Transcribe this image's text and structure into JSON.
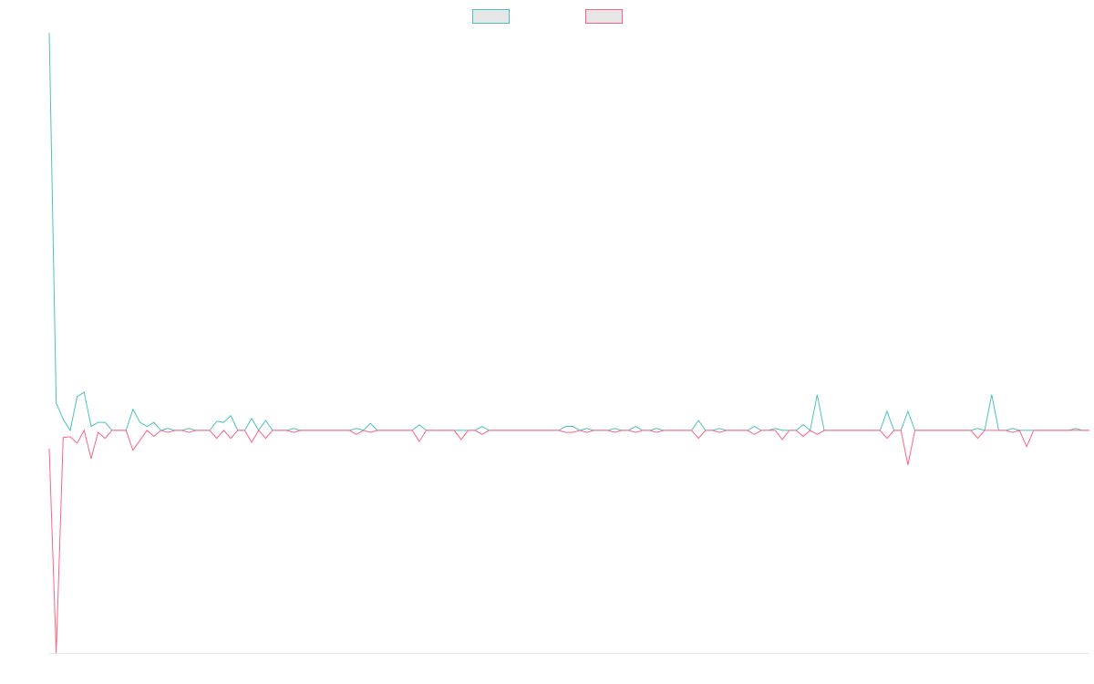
{
  "chart_data": {
    "type": "line",
    "legend": "top",
    "ylim": [
      -56,
      100
    ],
    "series": [
      {
        "color": "#4bc0c0",
        "values": [
          100,
          6.9,
          2.8,
          0,
          8.5,
          9.6,
          1,
          2,
          2,
          0,
          0,
          0,
          5.3,
          2,
          1,
          2,
          0,
          0.5,
          0,
          0,
          0.5,
          0,
          0,
          0,
          2.3,
          2,
          3.7,
          0,
          0,
          3,
          0,
          2.5,
          0,
          0,
          0,
          0.5,
          0,
          0,
          0,
          0,
          0,
          0,
          0,
          0,
          0.5,
          0,
          1.8,
          0,
          0,
          0,
          0,
          0,
          0,
          1.4,
          0,
          0,
          0,
          0,
          0,
          0,
          0,
          0,
          1,
          0,
          0,
          0,
          0,
          0,
          0,
          0,
          0,
          0,
          0,
          0,
          1,
          1,
          0,
          0.5,
          0,
          0,
          0,
          0.5,
          0,
          0,
          1,
          0,
          0,
          0.5,
          0,
          0,
          0,
          0,
          0,
          2.5,
          0,
          0,
          0.5,
          0,
          0,
          0,
          0,
          1,
          0,
          0,
          0.5,
          0,
          0,
          0,
          1.4,
          0,
          9,
          0,
          0,
          0,
          0,
          0,
          0,
          0,
          0,
          0,
          4.8,
          0,
          0,
          4.8,
          0,
          0,
          0,
          0,
          0,
          0,
          0,
          0,
          0,
          0.5,
          0,
          9,
          0,
          0,
          0.5,
          0,
          0,
          0,
          0,
          0,
          0,
          0,
          0,
          0.5,
          0,
          0
        ]
      },
      {
        "color": "#ff6384",
        "values": [
          -4.6,
          -56,
          -1.8,
          -1.6,
          -3.2,
          0,
          -7.1,
          -0.5,
          -2,
          0,
          0,
          0,
          -5,
          -2.5,
          0,
          -1.5,
          0,
          -0.5,
          0,
          0,
          -0.5,
          0,
          0,
          0,
          -2,
          0,
          -2,
          0,
          0,
          -3,
          0,
          -2,
          0,
          0,
          0,
          -0.5,
          0,
          0,
          0,
          0,
          0,
          0,
          0,
          0,
          -1,
          0,
          -0.5,
          0,
          0,
          0,
          0,
          0,
          0,
          -2.8,
          0,
          0,
          0,
          0,
          0,
          -2.3,
          0,
          0,
          -1,
          0,
          0,
          0,
          0,
          0,
          0,
          0,
          0,
          0,
          0,
          0,
          -0.5,
          -0.5,
          0,
          -0.5,
          0,
          0,
          0,
          -0.5,
          0,
          0,
          -0.5,
          0,
          0,
          -0.5,
          0,
          0,
          0,
          0,
          0,
          -2,
          0,
          0,
          -0.5,
          0,
          0,
          0,
          0,
          -1,
          0,
          0,
          0,
          -2.3,
          0,
          0,
          -1.5,
          0,
          -1,
          0,
          0,
          0,
          0,
          0,
          0,
          0,
          0,
          0,
          -2,
          0,
          0,
          -8.7,
          0,
          0,
          0,
          0,
          0,
          0,
          0,
          0,
          0,
          -2,
          0,
          0,
          0,
          0,
          -0.5,
          0,
          -4.1,
          0,
          0,
          0,
          0,
          0,
          0,
          0,
          0,
          0
        ]
      }
    ]
  }
}
